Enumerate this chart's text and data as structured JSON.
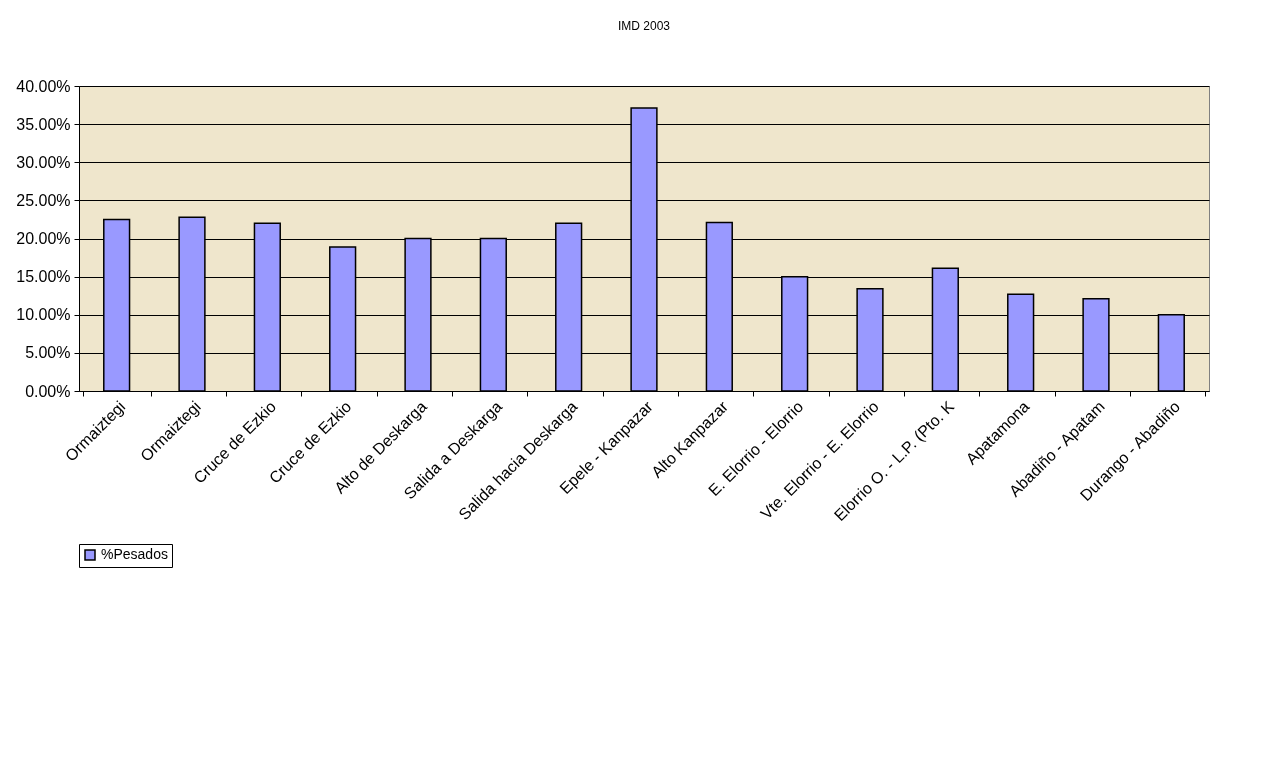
{
  "chart_data": {
    "type": "bar",
    "title": "IMD 2003",
    "categories": [
      "Ormaiztegi",
      "Ormaiztegi",
      "Cruce de Ezkio",
      "Cruce de Ezkio",
      "Alto de Deskarga",
      "Salida a Deskarga",
      "Salida hacia Deskarga",
      "Epele - Kanpazar",
      "Alto Kanpazar",
      "E. Elorrio - Elorrio",
      "Vte. Elorrio - E. Elorrio",
      "Elorrio O. - L.P. (Pto. K",
      "Apatamona",
      "Abadiño - Apatam",
      "Durango - Abadiño"
    ],
    "series": [
      {
        "name": "%Pesados",
        "color": "#9999ff",
        "values": [
          22.5,
          22.8,
          22.0,
          18.9,
          20.0,
          20.0,
          22.0,
          37.1,
          22.1,
          15.0,
          13.4,
          16.1,
          12.7,
          12.1,
          10.0
        ]
      }
    ],
    "ylim": [
      0,
      40
    ],
    "yticks": [
      {
        "value": 0,
        "label": "0.00%"
      },
      {
        "value": 5,
        "label": "5.00%"
      },
      {
        "value": 10,
        "label": "10.00%"
      },
      {
        "value": 15,
        "label": "15.00%"
      },
      {
        "value": 20,
        "label": "20.00%"
      },
      {
        "value": 25,
        "label": "25.00%"
      },
      {
        "value": 30,
        "label": "30.00%"
      },
      {
        "value": 35,
        "label": "35.00%"
      },
      {
        "value": 40,
        "label": "40.00%"
      }
    ],
    "grid": "y",
    "legend": "bottom"
  }
}
